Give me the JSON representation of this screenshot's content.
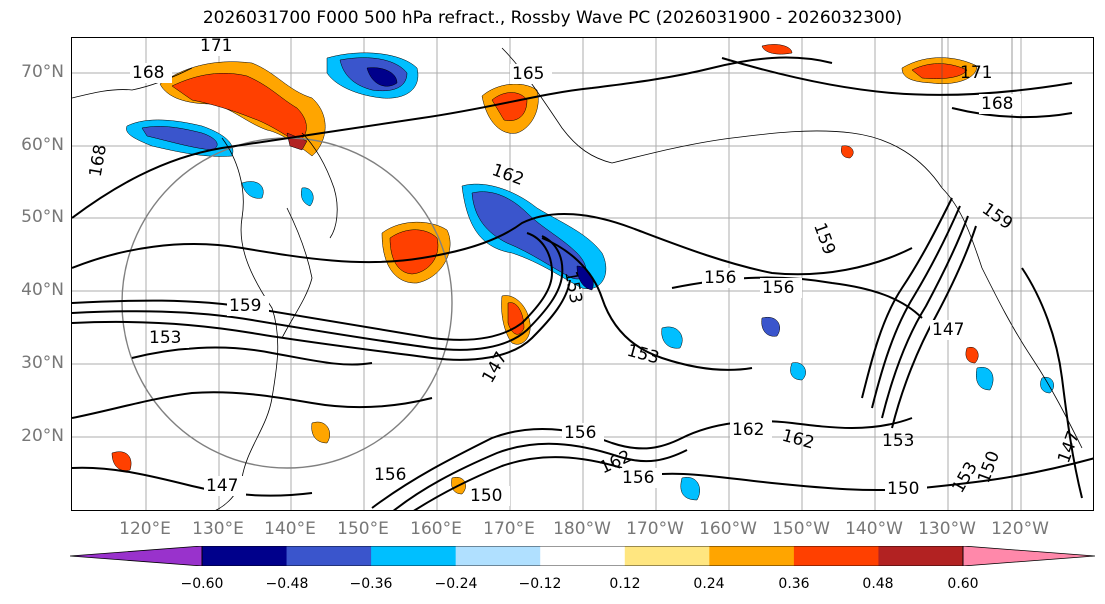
{
  "title": "2026031700 F000 500 hPa refract., Rossby Wave PC (2026031900 - 2026032300)",
  "lat_labels": [
    "70°N",
    "60°N",
    "50°N",
    "40°N",
    "30°N",
    "20°N"
  ],
  "lon_labels": [
    "120°E",
    "130°E",
    "140°E",
    "150°E",
    "160°E",
    "170°E",
    "180°W",
    "170°W",
    "160°W",
    "150°W",
    "140°W",
    "130°W",
    "120°W"
  ],
  "colorbar": {
    "ticks": [
      "−0.60",
      "−0.48",
      "−0.36",
      "−0.24",
      "−0.12",
      "0.12",
      "0.24",
      "0.36",
      "0.48",
      "0.60"
    ],
    "colors": [
      "#9932cc",
      "#00008b",
      "#3a55cc",
      "#00bfff",
      "#b0e0ff",
      "#ffffff",
      "#ffe680",
      "#ffa500",
      "#ff4000",
      "#b22222",
      "#ff88aa"
    ]
  },
  "contour_labels": [
    {
      "text": "171"
    },
    {
      "text": "168"
    },
    {
      "text": "165"
    },
    {
      "text": "171"
    },
    {
      "text": "168"
    },
    {
      "text": "168"
    },
    {
      "text": "162"
    },
    {
      "text": "159"
    },
    {
      "text": "159"
    },
    {
      "text": "159"
    },
    {
      "text": "153"
    },
    {
      "text": "153"
    },
    {
      "text": "156"
    },
    {
      "text": "156"
    },
    {
      "text": "153"
    },
    {
      "text": "147"
    },
    {
      "text": "147"
    },
    {
      "text": "156"
    },
    {
      "text": "162"
    },
    {
      "text": "162"
    },
    {
      "text": "162"
    },
    {
      "text": "156"
    },
    {
      "text": "150"
    },
    {
      "text": "147"
    },
    {
      "text": "156"
    },
    {
      "text": "150"
    },
    {
      "text": "153"
    },
    {
      "text": "153"
    },
    {
      "text": "150"
    },
    {
      "text": "147"
    }
  ]
}
